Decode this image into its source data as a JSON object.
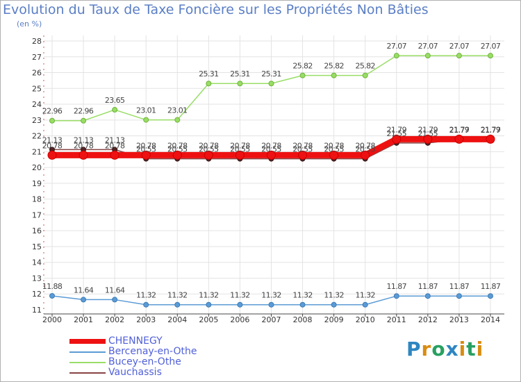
{
  "chart_data": {
    "type": "line",
    "title": "Evolution du Taux de Taxe Foncière sur les Propriétés Non Bâties",
    "ylabel": "(en %)",
    "xlabel": "",
    "categories": [
      "2000",
      "2001",
      "2002",
      "2003",
      "2004",
      "2005",
      "2006",
      "2007",
      "2008",
      "2009",
      "2010",
      "2011",
      "2012",
      "2013",
      "2014"
    ],
    "ylim": [
      11,
      28
    ],
    "yticks": [
      11,
      12,
      13,
      14,
      15,
      16,
      17,
      18,
      19,
      20,
      21,
      22,
      23,
      24,
      25,
      26,
      27,
      28
    ],
    "grid": true,
    "legend_position": "bottom-left",
    "series": [
      {
        "name": "CHENNEGY",
        "color": "#ee1111",
        "values": [
          20.78,
          20.78,
          20.78,
          20.78,
          20.78,
          20.78,
          20.78,
          20.78,
          20.78,
          20.78,
          20.78,
          21.79,
          21.79,
          21.79,
          21.79
        ],
        "labels": [
          "20.78",
          "20.78",
          "20.78",
          "20.78",
          "20.78",
          "20.78",
          "20.78",
          "20.78",
          "20.78",
          "20.78",
          "20.78",
          "21.79",
          "21.79",
          "21.79",
          "21.79"
        ]
      },
      {
        "name": "Bercenay-en-Othe",
        "color": "#5b9bd5",
        "values": [
          11.88,
          11.64,
          11.64,
          11.32,
          11.32,
          11.32,
          11.32,
          11.32,
          11.32,
          11.32,
          11.32,
          11.87,
          11.87,
          11.87,
          11.87
        ],
        "labels": [
          "11.88",
          "11.64",
          "11.64",
          "11.32",
          "11.32",
          "11.32",
          "11.32",
          "11.32",
          "11.32",
          "11.32",
          "11.32",
          "11.87",
          "11.87",
          "11.87",
          "11.87"
        ]
      },
      {
        "name": "Bucey-en-Othe",
        "color": "#99dd66",
        "values": [
          22.96,
          22.96,
          23.65,
          23.01,
          23.01,
          25.31,
          25.31,
          25.31,
          25.82,
          25.82,
          25.82,
          27.07,
          27.07,
          27.07,
          27.07
        ],
        "labels": [
          "22.96",
          "22.96",
          "23.65",
          "23.01",
          "23.01",
          "25.31",
          "25.31",
          "25.31",
          "25.82",
          "25.82",
          "25.82",
          "27.07",
          "27.07",
          "27.07",
          "27.07"
        ]
      },
      {
        "name": "Vauchassis",
        "color": "#884444",
        "values": [
          21.13,
          21.13,
          21.13,
          20.55,
          20.55,
          20.55,
          20.55,
          20.55,
          20.55,
          20.55,
          20.55,
          21.55,
          21.55,
          21.77,
          21.77
        ],
        "labels": [
          "21.13",
          "21.13",
          "21.13",
          "20.55",
          "20.55",
          "20.55",
          "20.55",
          "20.55",
          "20.55",
          "20.55",
          "20.55",
          "21.55",
          "21.55",
          "21.77",
          "21.77"
        ]
      }
    ]
  },
  "logo": {
    "letters": [
      "P",
      "r",
      "o",
      "x",
      "i",
      "t",
      "i"
    ],
    "colors": [
      "#2e86c1",
      "#d98c10",
      "#27a060",
      "#2e86c1",
      "#d98c10",
      "#27a060",
      "#d98c10"
    ]
  }
}
